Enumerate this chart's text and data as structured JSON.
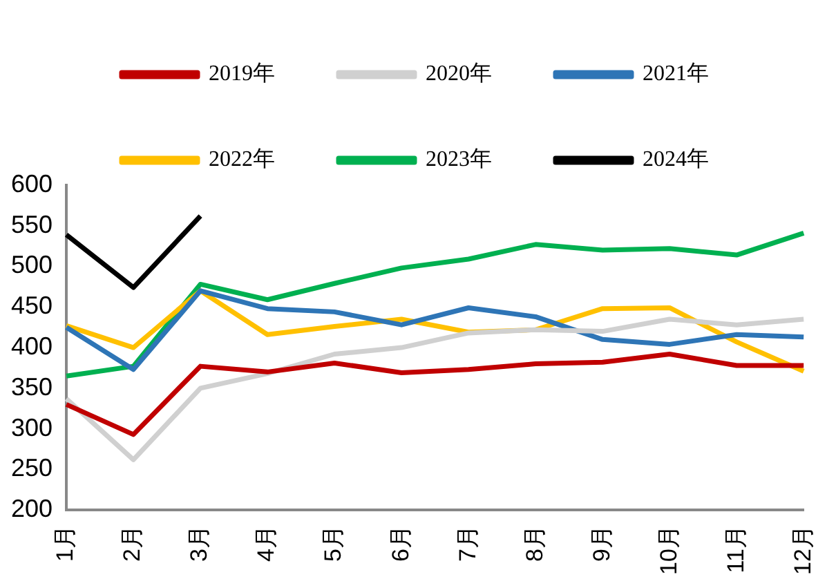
{
  "chart_data": {
    "type": "line",
    "categories": [
      "1月",
      "2月",
      "3月",
      "4月",
      "5月",
      "6月",
      "7月",
      "8月",
      "9月",
      "10月",
      "11月",
      "12月"
    ],
    "series": [
      {
        "name": "2019年",
        "color": "#c00000",
        "values": [
          330,
          293,
          377,
          370,
          381,
          369,
          373,
          380,
          382,
          392,
          378,
          378
        ]
      },
      {
        "name": "2020年",
        "color": "#d0d0d0",
        "values": [
          337,
          262,
          350,
          368,
          392,
          400,
          418,
          422,
          420,
          435,
          428,
          435
        ]
      },
      {
        "name": "2021年",
        "color": "#2e75b6",
        "values": [
          425,
          373,
          470,
          448,
          444,
          428,
          449,
          438,
          410,
          404,
          416,
          413
        ]
      },
      {
        "name": "2022年",
        "color": "#ffc000",
        "values": [
          427,
          400,
          470,
          416,
          426,
          435,
          419,
          422,
          448,
          449,
          407,
          371
        ]
      },
      {
        "name": "2023年",
        "color": "#00b050",
        "values": [
          365,
          377,
          478,
          459,
          479,
          498,
          509,
          527,
          520,
          522,
          514,
          541
        ]
      },
      {
        "name": "2024年",
        "color": "#000000",
        "values": [
          539,
          474,
          562,
          null,
          null,
          null,
          null,
          null,
          null,
          null,
          null,
          null
        ]
      }
    ],
    "ylim": [
      200,
      600
    ],
    "yticks": [
      200,
      250,
      300,
      350,
      400,
      450,
      500,
      550,
      600
    ],
    "grid": false,
    "legend": "top",
    "marker": "none",
    "line_style": "solid"
  }
}
